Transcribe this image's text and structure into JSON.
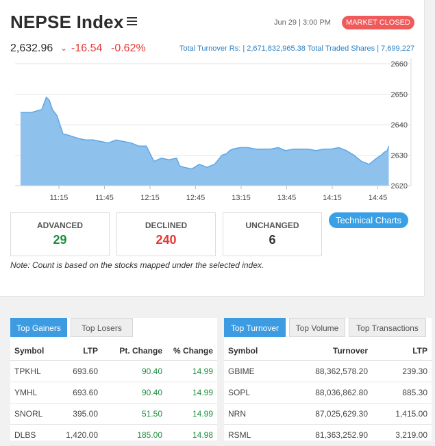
{
  "header": {
    "title": "NEPSE Index",
    "datetime": "Jun 29 | 3:00 PM",
    "status": "MARKET CLOSED"
  },
  "index": {
    "value": "2,632.96",
    "change_points": "-16.54",
    "change_percent": "-0.62%",
    "turnover_text": "Total Turnover Rs: | 2,671,832,965.38   Total Traded Shares | 7,699,227"
  },
  "chart_data": {
    "type": "area",
    "x_ticks": [
      "11:15",
      "11:45",
      "12:15",
      "12:45",
      "13:15",
      "13:45",
      "14:15",
      "14:45"
    ],
    "y_ticks": [
      "2660",
      "2650",
      "2640",
      "2630",
      "2620"
    ],
    "ylim": [
      2620,
      2660
    ],
    "xlim": [
      0,
      250
    ],
    "color": "#8ec1ec",
    "line_color": "#5ea7e4",
    "x": [
      0,
      7,
      14,
      17,
      19,
      21,
      24,
      28,
      32,
      35,
      38,
      43,
      48,
      53,
      58,
      63,
      68,
      73,
      78,
      83,
      88,
      93,
      98,
      103,
      105,
      108,
      113,
      118,
      123,
      128,
      133,
      136,
      138,
      140,
      145,
      150,
      155,
      160,
      165,
      170,
      175,
      180,
      185,
      190,
      195,
      200,
      205,
      210,
      215,
      220,
      225,
      230,
      235,
      238,
      240,
      242,
      243
    ],
    "values": [
      2644,
      2644,
      2645,
      2649,
      2648,
      2645,
      2643,
      2637,
      2636.5,
      2636,
      2635.5,
      2635,
      2635,
      2634.5,
      2634,
      2635,
      2634.5,
      2634,
      2633,
      2633,
      2628,
      2629,
      2628.5,
      2629,
      2626.5,
      2626,
      2625.5,
      2627,
      2626,
      2627,
      2630,
      2630.5,
      2631.5,
      2632,
      2632.5,
      2632.5,
      2632,
      2632,
      2632,
      2632.5,
      2631.5,
      2632,
      2632,
      2632,
      2631.5,
      2632,
      2632,
      2632.5,
      2631.5,
      2630,
      2628,
      2627,
      2629,
      2630,
      2631,
      2631.5,
      2632.96
    ]
  },
  "stats": {
    "advanced_label": "ADVANCED",
    "advanced_value": "29",
    "declined_label": "DECLINED",
    "declined_value": "240",
    "unchanged_label": "UNCHANGED",
    "unchanged_value": "6"
  },
  "tech_button": "Technical Charts",
  "note": "Note: Count is based on the stocks mapped under the selected index.",
  "left_panel": {
    "tabs": [
      "Top Gainers",
      "Top Losers"
    ],
    "headers": [
      "Symbol",
      "LTP",
      "Pt. Change",
      "% Change"
    ],
    "rows": [
      [
        "TPKHL",
        "693.60",
        "90.40",
        "14.99"
      ],
      [
        "YMHL",
        "693.60",
        "90.40",
        "14.99"
      ],
      [
        "SNORL",
        "395.00",
        "51.50",
        "14.99"
      ],
      [
        "DLBS",
        "1,420.00",
        "185.00",
        "14.98"
      ]
    ]
  },
  "right_panel": {
    "tabs": [
      "Top Turnover",
      "Top Volume",
      "Top Transactions"
    ],
    "headers": [
      "Symbol",
      "Turnover",
      "LTP"
    ],
    "rows": [
      [
        "GBIME",
        "88,362,578.20",
        "239.30"
      ],
      [
        "SOPL",
        "88,036,862.80",
        "885.30"
      ],
      [
        "NRN",
        "87,025,629.30",
        "1,415.00"
      ],
      [
        "RSML",
        "81,363,252.90",
        "3,219.00"
      ]
    ]
  }
}
